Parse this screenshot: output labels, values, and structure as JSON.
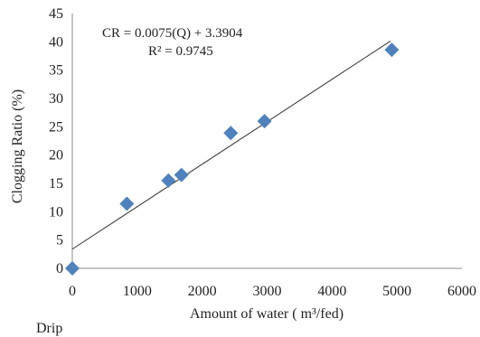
{
  "chart_data": {
    "type": "scatter",
    "xlabel": "Amount of water ( m³/fed)",
    "ylabel": "Clogging Ratio (%)",
    "xlim": [
      0,
      6000
    ],
    "ylim": [
      0,
      45
    ],
    "xticks": [
      0,
      1000,
      2000,
      3000,
      4000,
      5000,
      6000
    ],
    "yticks": [
      0,
      5,
      10,
      15,
      20,
      25,
      30,
      35,
      40,
      45
    ],
    "grid": false,
    "series": [
      {
        "marker": "diamond",
        "color": "#4F81BD",
        "points": [
          {
            "x": 0,
            "y": 0
          },
          {
            "x": 840,
            "y": 11.4
          },
          {
            "x": 1480,
            "y": 15.5
          },
          {
            "x": 1680,
            "y": 16.5
          },
          {
            "x": 2440,
            "y": 23.9
          },
          {
            "x": 2960,
            "y": 26.0
          },
          {
            "x": 4920,
            "y": 38.6
          }
        ]
      }
    ],
    "trendline": {
      "slope": 0.0075,
      "intercept": 3.3904,
      "x_range": [
        0,
        4900
      ],
      "color": "#333333"
    },
    "annotations": {
      "equation": "CR = 0.0075(Q) + 3.3904",
      "r_squared": "R² = 0.9745"
    }
  },
  "caption": "Drip"
}
